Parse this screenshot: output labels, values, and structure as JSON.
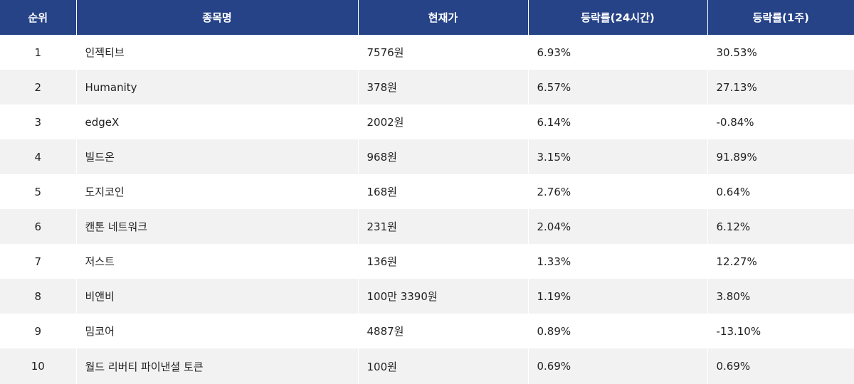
{
  "table": {
    "headers": {
      "rank": "순위",
      "name": "종목명",
      "price": "현재가",
      "change_24h": "등락률(24시간)",
      "change_1w": "등락률(1주)"
    },
    "rows": [
      {
        "rank": "1",
        "name": "인젝티브",
        "price": "7576원",
        "change_24h": "6.93%",
        "change_1w": "30.53%"
      },
      {
        "rank": "2",
        "name": "Humanity",
        "price": "378원",
        "change_24h": "6.57%",
        "change_1w": "27.13%"
      },
      {
        "rank": "3",
        "name": "edgeX",
        "price": "2002원",
        "change_24h": "6.14%",
        "change_1w": "-0.84%"
      },
      {
        "rank": "4",
        "name": "빌드온",
        "price": "968원",
        "change_24h": "3.15%",
        "change_1w": "91.89%"
      },
      {
        "rank": "5",
        "name": "도지코인",
        "price": "168원",
        "change_24h": "2.76%",
        "change_1w": "0.64%"
      },
      {
        "rank": "6",
        "name": "캔톤 네트워크",
        "price": "231원",
        "change_24h": "2.04%",
        "change_1w": "6.12%"
      },
      {
        "rank": "7",
        "name": "저스트",
        "price": "136원",
        "change_24h": "1.33%",
        "change_1w": "12.27%"
      },
      {
        "rank": "8",
        "name": "비앤비",
        "price": "100만 3390원",
        "change_24h": "1.19%",
        "change_1w": "3.80%"
      },
      {
        "rank": "9",
        "name": "밈코어",
        "price": "4887원",
        "change_24h": "0.89%",
        "change_1w": "-13.10%"
      },
      {
        "rank": "10",
        "name": "월드 리버티 파이낸셜 토큰",
        "price": "100원",
        "change_24h": "0.69%",
        "change_1w": "0.69%"
      }
    ]
  }
}
